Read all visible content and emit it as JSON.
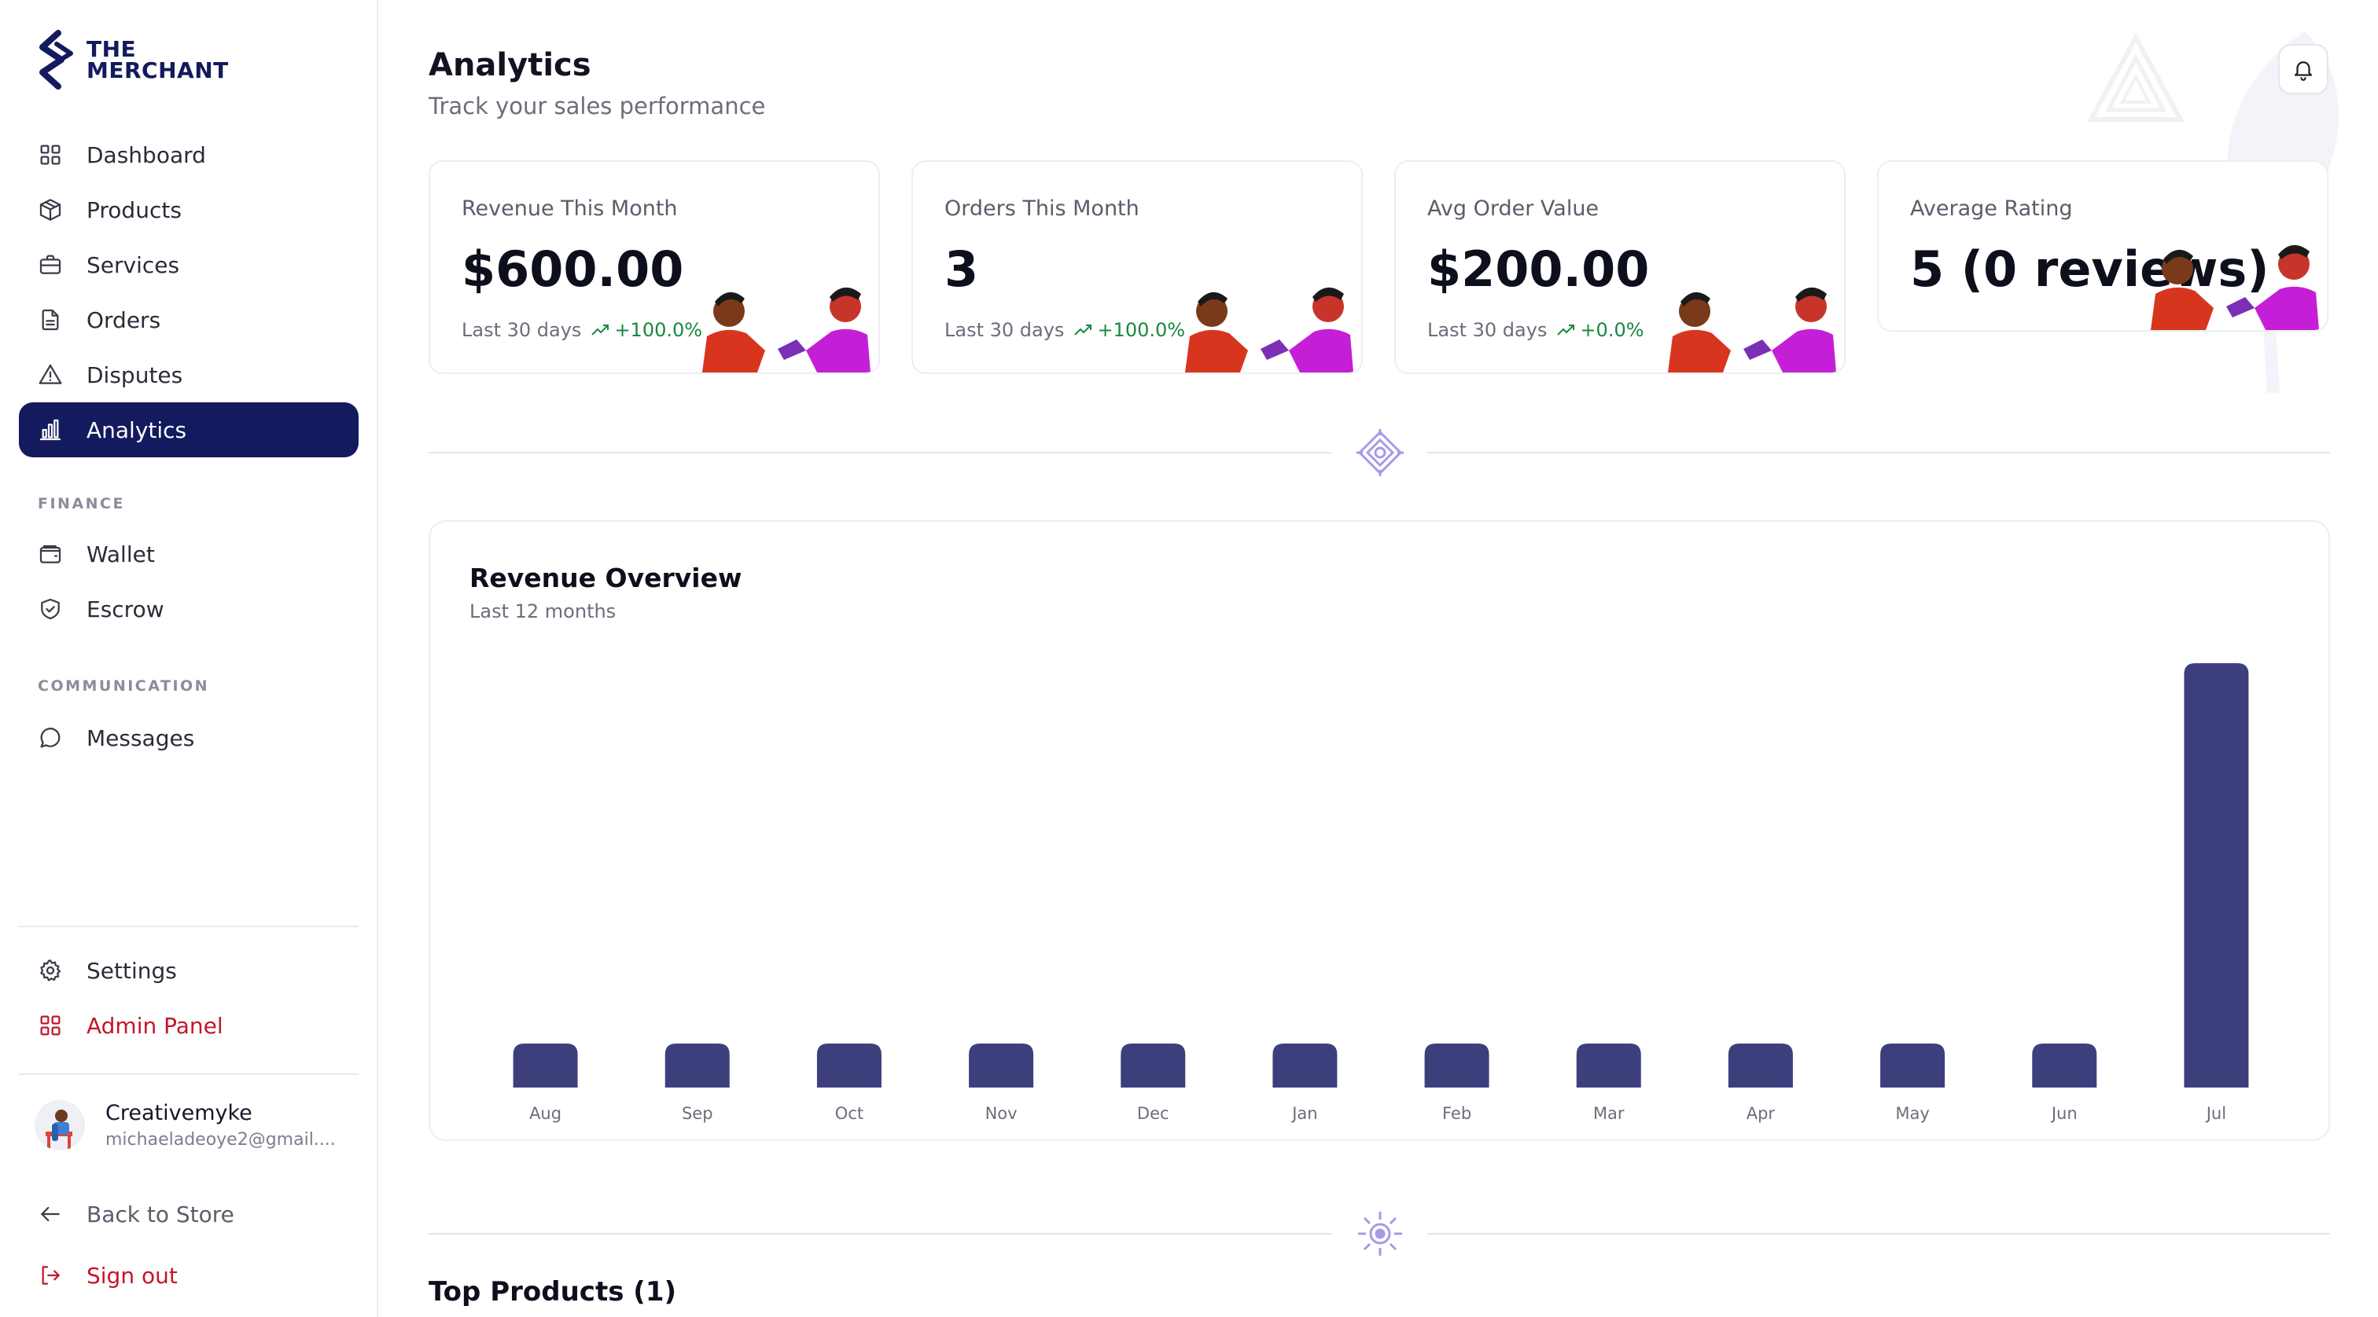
{
  "brand": {
    "line1": "THE",
    "line2": "MERCHANT",
    "color": "#141a5e"
  },
  "sidebar": {
    "main_items": [
      {
        "label": "Dashboard",
        "icon": "grid-icon"
      },
      {
        "label": "Products",
        "icon": "box-icon"
      },
      {
        "label": "Services",
        "icon": "briefcase-icon"
      },
      {
        "label": "Orders",
        "icon": "file-icon"
      },
      {
        "label": "Disputes",
        "icon": "alert-triangle-icon"
      },
      {
        "label": "Analytics",
        "icon": "bar-chart-icon",
        "active": true
      }
    ],
    "finance_label": "FINANCE",
    "finance_items": [
      {
        "label": "Wallet",
        "icon": "wallet-icon"
      },
      {
        "label": "Escrow",
        "icon": "shield-check-icon"
      }
    ],
    "communication_label": "COMMUNICATION",
    "communication_items": [
      {
        "label": "Messages",
        "icon": "message-circle-icon"
      }
    ],
    "settings_label": "Settings",
    "admin_label": "Admin Panel",
    "user": {
      "name": "Creativemyke",
      "email": "michaeladeoye2@gmail...."
    },
    "back_label": "Back to Store",
    "signout_label": "Sign out"
  },
  "header": {
    "title": "Analytics",
    "subtitle": "Track your sales performance"
  },
  "stats": [
    {
      "title": "Revenue This Month",
      "value": "$600.00",
      "period": "Last 30 days",
      "trend": "+100.0%"
    },
    {
      "title": "Orders This Month",
      "value": "3",
      "period": "Last 30 days",
      "trend": "+100.0%"
    },
    {
      "title": "Avg Order Value",
      "value": "$200.00",
      "period": "Last 30 days",
      "trend": "+0.0%"
    },
    {
      "title": "Average Rating",
      "value": "5 (0 reviews)"
    }
  ],
  "revenue_chart": {
    "title": "Revenue Overview",
    "subtitle": "Last 12 months"
  },
  "chart_data": {
    "type": "bar",
    "categories": [
      "Aug",
      "Sep",
      "Oct",
      "Nov",
      "Dec",
      "Jan",
      "Feb",
      "Mar",
      "Apr",
      "May",
      "Jun",
      "Jul"
    ],
    "values": [
      0,
      0,
      0,
      0,
      0,
      0,
      0,
      0,
      0,
      0,
      0,
      600
    ],
    "title": "Revenue Overview",
    "subtitle": "Last 12 months",
    "xlabel": "",
    "ylabel": "",
    "ylim": [
      0,
      600
    ],
    "grid": false,
    "legend": "none",
    "bar_color": "#3d3f7d"
  },
  "top_products": {
    "title": "Top Products (1)"
  },
  "colors": {
    "accent": "#141a5e",
    "danger": "#c5162b",
    "positive": "#18883f",
    "ornament": "#a79ae6"
  }
}
